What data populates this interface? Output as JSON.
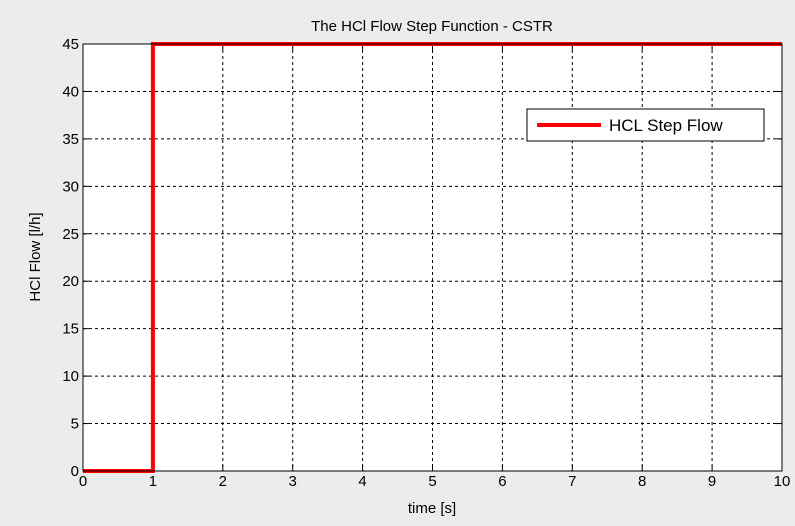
{
  "chart_data": {
    "type": "line",
    "title": "The HCl Flow  Step Function - CSTR",
    "xlabel": "time [s]",
    "ylabel": "HCl Flow [l/h]",
    "xlim": [
      0,
      10
    ],
    "ylim": [
      0,
      45
    ],
    "x_ticks": [
      0,
      1,
      2,
      3,
      4,
      5,
      6,
      7,
      8,
      9,
      10
    ],
    "y_ticks": [
      0,
      5,
      10,
      15,
      20,
      25,
      30,
      35,
      40,
      45
    ],
    "grid": true,
    "legend_position": "top-right",
    "series": [
      {
        "name": "HCL Step Flow",
        "color": "#ff0000",
        "x": [
          0,
          1,
          1,
          10
        ],
        "y": [
          0,
          0,
          45,
          45
        ]
      }
    ]
  }
}
